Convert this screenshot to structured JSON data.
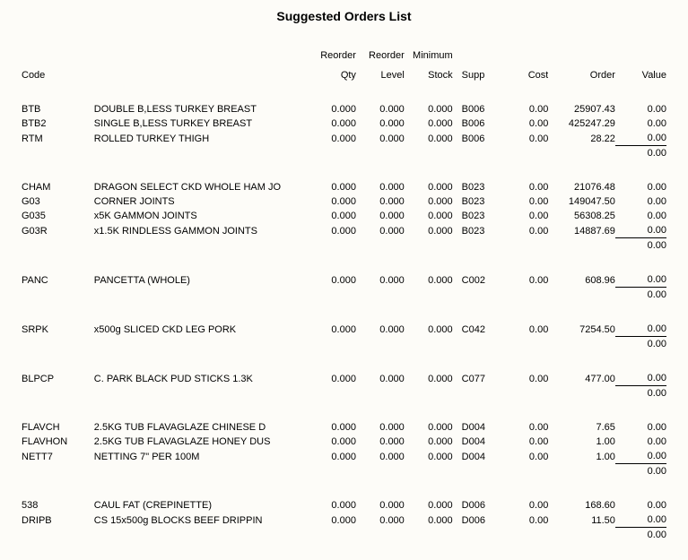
{
  "title": "Suggested Orders List",
  "headers": {
    "code": "Code",
    "reorder_qty_1": "Reorder",
    "reorder_qty_2": "Qty",
    "reorder_level_1": "Reorder",
    "reorder_level_2": "Level",
    "min_stock_1": "Minimum",
    "min_stock_2": "Stock",
    "supp": "Supp",
    "cost": "Cost",
    "order": "Order",
    "value": "Value"
  },
  "groups": [
    {
      "rows": [
        {
          "code": "BTB",
          "desc": "DOUBLE B,LESS TURKEY BREAST",
          "rqty": "0.000",
          "rlvl": "0.000",
          "mstk": "0.000",
          "supp": "B006",
          "cost": "0.00",
          "order": "25907.43",
          "value": "0.00"
        },
        {
          "code": "BTB2",
          "desc": "SINGLE B,LESS TURKEY BREAST",
          "rqty": "0.000",
          "rlvl": "0.000",
          "mstk": "0.000",
          "supp": "B006",
          "cost": "0.00",
          "order": "425247.29",
          "value": "0.00"
        },
        {
          "code": "RTM",
          "desc": "ROLLED TURKEY THIGH",
          "rqty": "0.000",
          "rlvl": "0.000",
          "mstk": "0.000",
          "supp": "B006",
          "cost": "0.00",
          "order": "28.22",
          "value": "0.00"
        }
      ],
      "subtotal": "0.00"
    },
    {
      "rows": [
        {
          "code": "CHAM",
          "desc": "DRAGON SELECT CKD WHOLE HAM JO",
          "rqty": "0.000",
          "rlvl": "0.000",
          "mstk": "0.000",
          "supp": "B023",
          "cost": "0.00",
          "order": "21076.48",
          "value": "0.00"
        },
        {
          "code": "G03",
          "desc": " CORNER JOINTS",
          "rqty": "0.000",
          "rlvl": "0.000",
          "mstk": "0.000",
          "supp": "B023",
          "cost": "0.00",
          "order": "149047.50",
          "value": "0.00"
        },
        {
          "code": "G035",
          "desc": "x5K GAMMON JOINTS",
          "rqty": "0.000",
          "rlvl": "0.000",
          "mstk": "0.000",
          "supp": "B023",
          "cost": "0.00",
          "order": "56308.25",
          "value": "0.00"
        },
        {
          "code": "G03R",
          "desc": "x1.5K RINDLESS GAMMON JOINTS",
          "rqty": "0.000",
          "rlvl": "0.000",
          "mstk": "0.000",
          "supp": "B023",
          "cost": "0.00",
          "order": "14887.69",
          "value": "0.00"
        }
      ],
      "subtotal": "0.00"
    },
    {
      "rows": [
        {
          "code": "PANC",
          "desc": "PANCETTA  (WHOLE)",
          "rqty": "0.000",
          "rlvl": "0.000",
          "mstk": "0.000",
          "supp": "C002",
          "cost": "0.00",
          "order": "608.96",
          "value": "0.00"
        }
      ],
      "subtotal": "0.00"
    },
    {
      "rows": [
        {
          "code": "SRPK",
          "desc": "x500g SLICED CKD LEG PORK",
          "rqty": "0.000",
          "rlvl": "0.000",
          "mstk": "0.000",
          "supp": "C042",
          "cost": "0.00",
          "order": "7254.50",
          "value": "0.00"
        }
      ],
      "subtotal": "0.00"
    },
    {
      "rows": [
        {
          "code": "BLPCP",
          "desc": " C. PARK BLACK PUD STICKS 1.3K",
          "rqty": "0.000",
          "rlvl": "0.000",
          "mstk": "0.000",
          "supp": "C077",
          "cost": "0.00",
          "order": "477.00",
          "value": "0.00"
        }
      ],
      "subtotal": "0.00"
    },
    {
      "rows": [
        {
          "code": "FLAVCH",
          "desc": "2.5KG TUB FLAVAGLAZE CHINESE D",
          "rqty": "0.000",
          "rlvl": "0.000",
          "mstk": "0.000",
          "supp": "D004",
          "cost": "0.00",
          "order": "7.65",
          "value": "0.00"
        },
        {
          "code": "FLAVHON",
          "desc": "2.5KG TUB FLAVAGLAZE HONEY DUS",
          "rqty": "0.000",
          "rlvl": "0.000",
          "mstk": "0.000",
          "supp": "D004",
          "cost": "0.00",
          "order": "1.00",
          "value": "0.00"
        },
        {
          "code": "NETT7",
          "desc": "NETTING 7\" PER 100M",
          "rqty": "0.000",
          "rlvl": "0.000",
          "mstk": "0.000",
          "supp": "D004",
          "cost": "0.00",
          "order": "1.00",
          "value": "0.00"
        }
      ],
      "subtotal": "0.00"
    },
    {
      "rows": [
        {
          "code": "538",
          "desc": "CAUL FAT  (CREPINETTE)",
          "rqty": "0.000",
          "rlvl": "0.000",
          "mstk": "0.000",
          "supp": "D006",
          "cost": "0.00",
          "order": "168.60",
          "value": "0.00"
        },
        {
          "code": "DRIPB",
          "desc": "CS 15x500g BLOCKS BEEF DRIPPIN",
          "rqty": "0.000",
          "rlvl": "0.000",
          "mstk": "0.000",
          "supp": "D006",
          "cost": "0.00",
          "order": "11.50",
          "value": "0.00"
        }
      ],
      "subtotal": "0.00"
    }
  ]
}
